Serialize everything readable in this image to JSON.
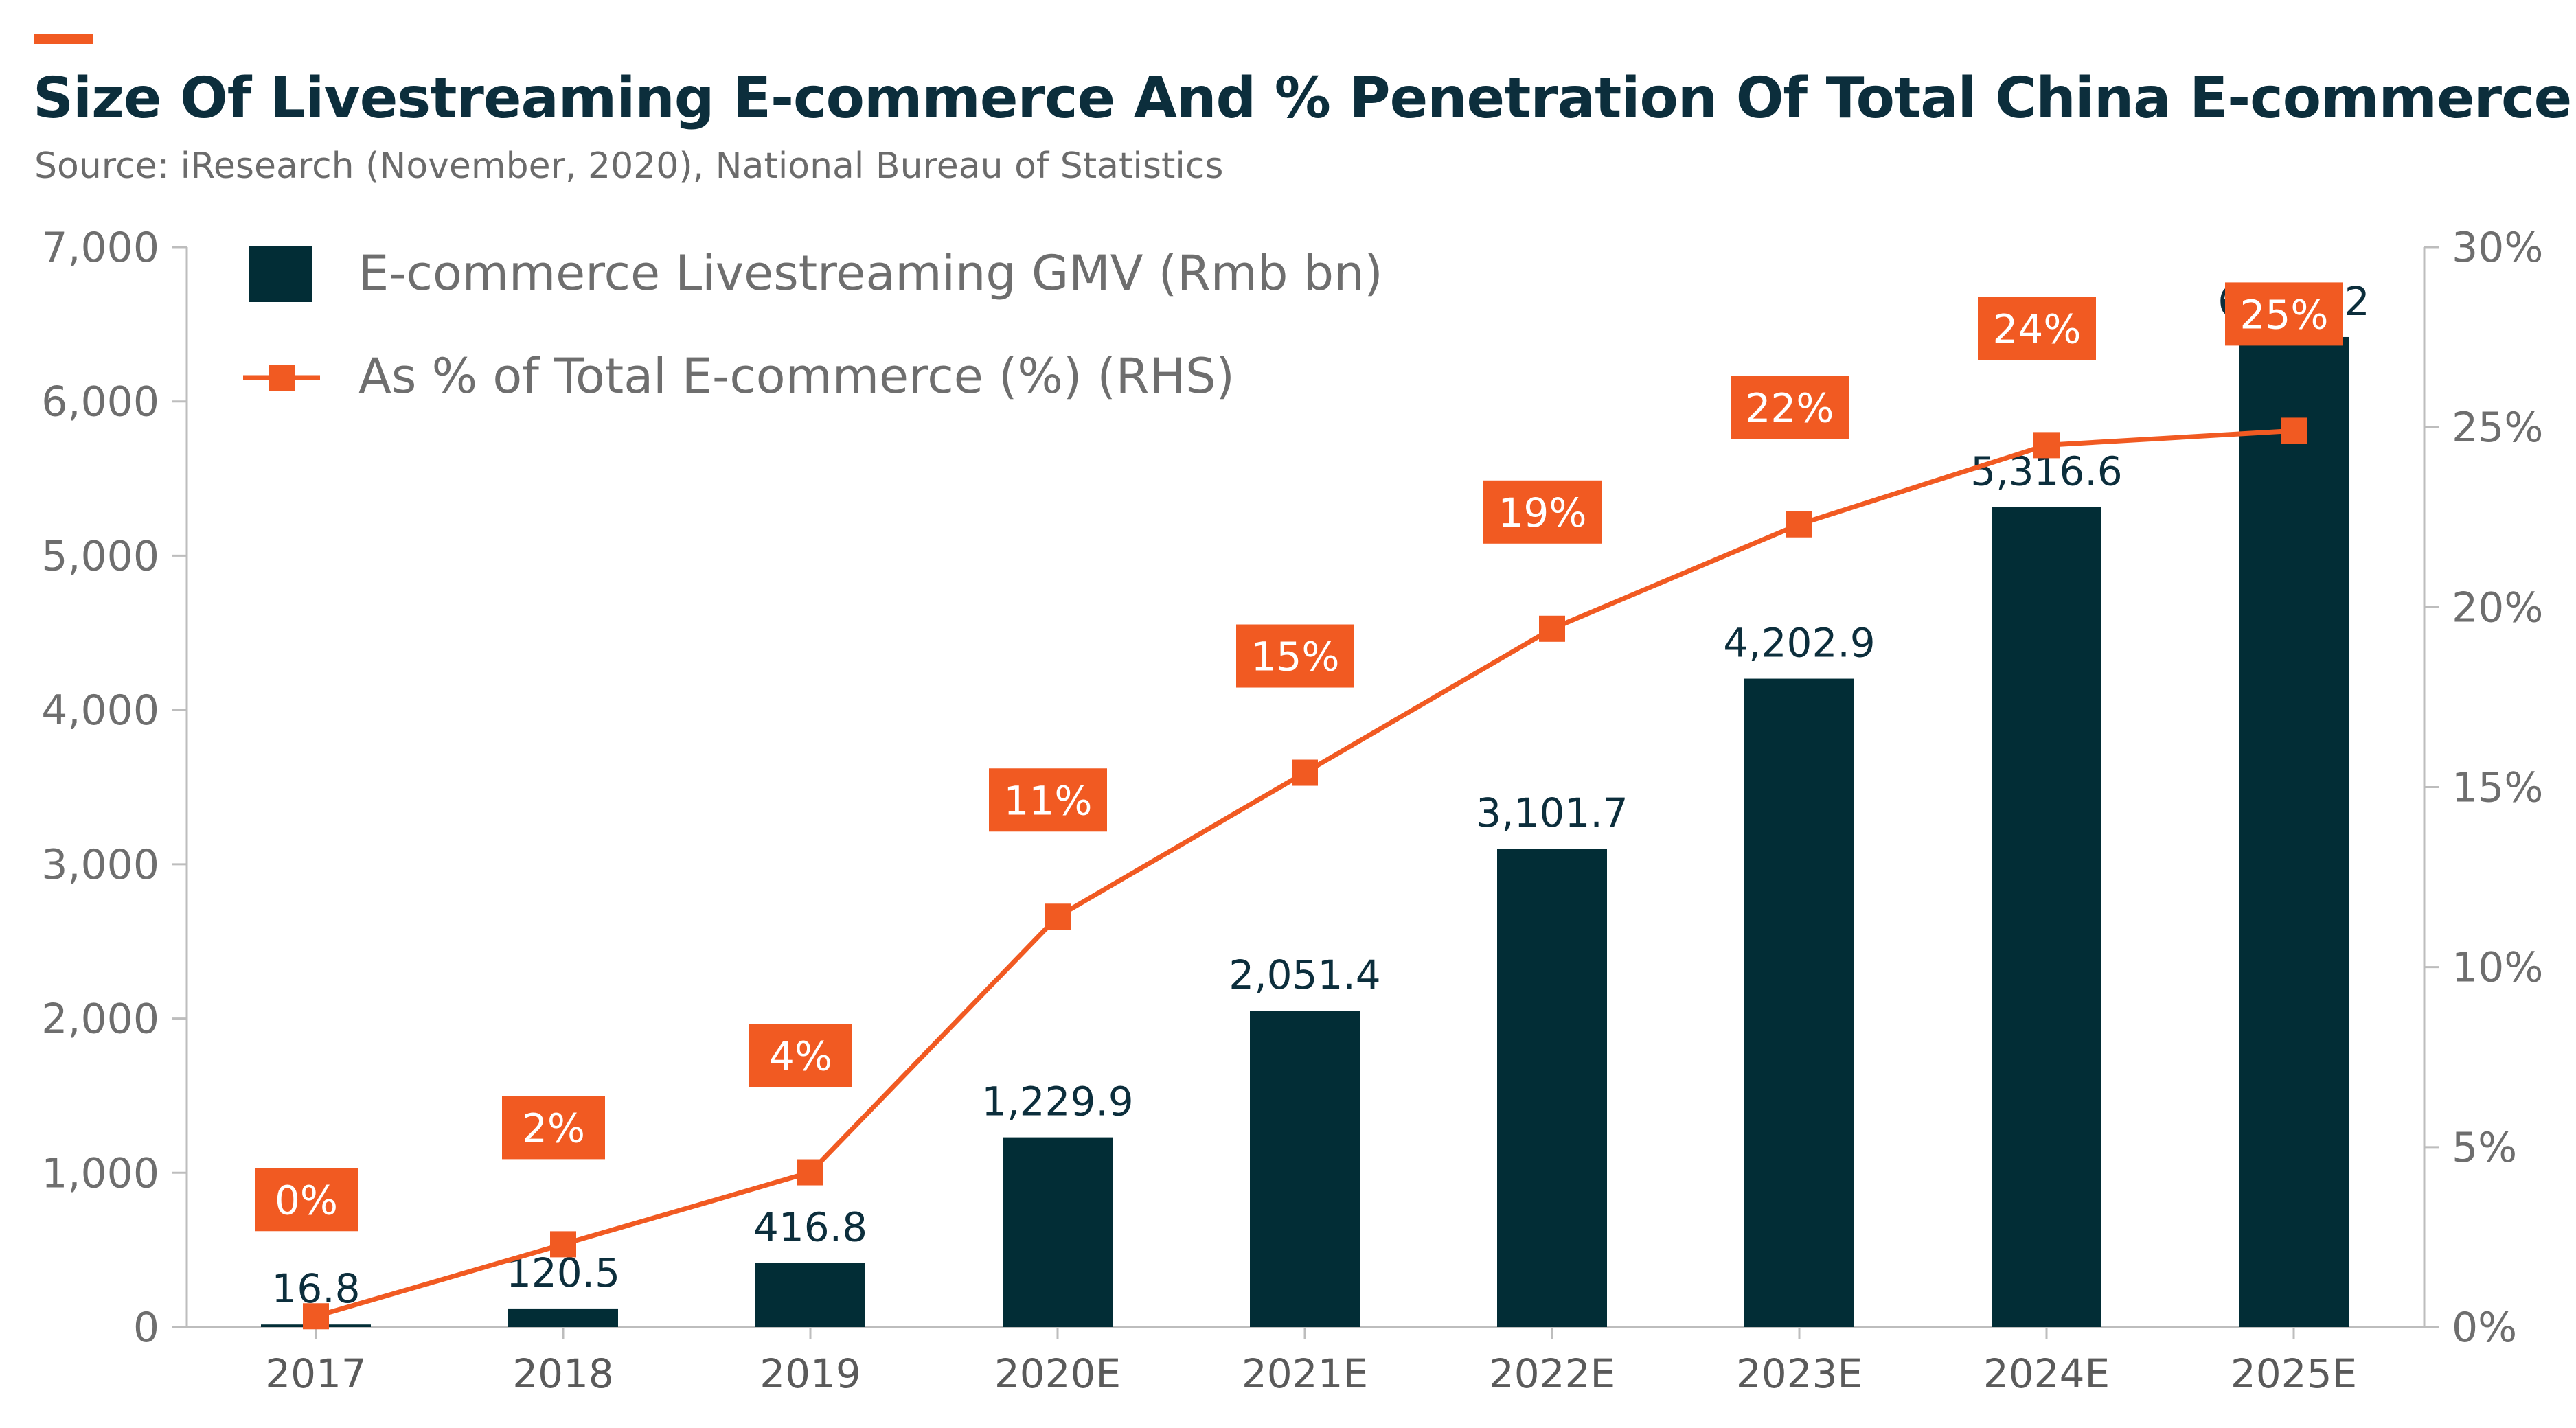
{
  "header": {
    "title": "Size Of Livestreaming E-commerce And % Penetration Of Total China E-commerce",
    "subtitle": "Source: iResearch (November, 2020), National Bureau of Statistics"
  },
  "colors": {
    "bar": "#022d36",
    "line": "#f15a22",
    "axis": "#bdbdbd"
  },
  "chart_data": {
    "type": "bar",
    "categories": [
      "2017",
      "2018",
      "2019",
      "2020E",
      "2021E",
      "2022E",
      "2023E",
      "2024E",
      "2025E"
    ],
    "series": [
      {
        "name": "E-commerce Livestreaming GMV (Rmb bn)",
        "type": "bar",
        "axis": "left",
        "values": [
          16.8,
          120.5,
          416.8,
          1229.9,
          2051.4,
          3101.7,
          4202.9,
          5316.6,
          6417.2
        ],
        "labels": [
          "16.8",
          "120.5",
          "416.8",
          "1,229.9",
          "2,051.4",
          "3,101.7",
          "4,202.9",
          "5,316.6",
          "6,417.2"
        ]
      },
      {
        "name": "As % of Total E-commerce (%) (RHS)",
        "type": "line",
        "axis": "right",
        "values": [
          0.3,
          2.3,
          4.3,
          11.4,
          15.4,
          19.4,
          22.3,
          24.5,
          24.9
        ],
        "labels": [
          "0%",
          "2%",
          "4%",
          "11%",
          "15%",
          "19%",
          "22%",
          "24%",
          "25%"
        ]
      }
    ],
    "y_left": {
      "min": 0,
      "max": 7000,
      "ticks": [
        0,
        1000,
        2000,
        3000,
        4000,
        5000,
        6000,
        7000
      ],
      "tick_labels": [
        "0",
        "1,000",
        "2,000",
        "3,000",
        "4,000",
        "5,000",
        "6,000",
        "7,000"
      ]
    },
    "y_right": {
      "min": 0,
      "max": 30,
      "ticks": [
        0,
        5,
        10,
        15,
        20,
        25,
        30
      ],
      "tick_labels": [
        "0%",
        "5%",
        "10%",
        "15%",
        "20%",
        "25%",
        "30%"
      ]
    },
    "grid": false,
    "legend": "top-left"
  }
}
